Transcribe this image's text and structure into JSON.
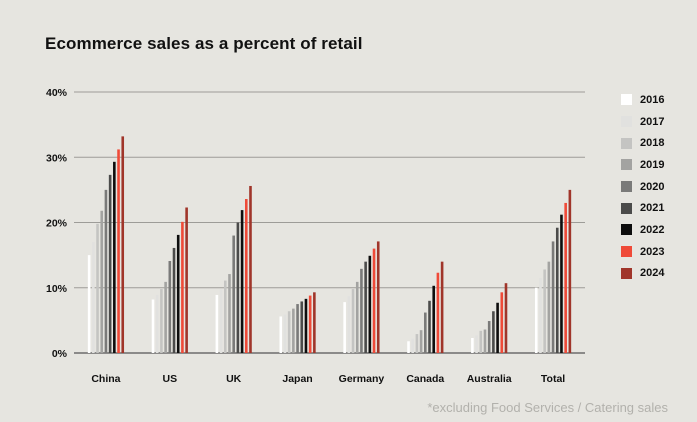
{
  "title": "Ecommerce sales as a percent of retail",
  "footnote": "*excluding Food Services / Catering sales",
  "chart_data": {
    "type": "bar",
    "title": "Ecommerce sales as a percent of retail",
    "xlabel": "",
    "ylabel": "",
    "ylim": [
      0,
      40
    ],
    "yticks": [
      0,
      10,
      20,
      30,
      40
    ],
    "ytick_labels": [
      "0%",
      "10%",
      "20%",
      "30%",
      "40%"
    ],
    "grid": true,
    "legend_position": "right",
    "categories": [
      "China",
      "US",
      "UK",
      "Japan",
      "Germany",
      "Canada",
      "Australia",
      "Total"
    ],
    "series": [
      {
        "name": "2016",
        "color": "#ffffff",
        "values": [
          15.0,
          8.2,
          8.9,
          5.6,
          7.8,
          1.8,
          2.3,
          10.0
        ]
      },
      {
        "name": "2017",
        "color": "#e1e1df",
        "values": [
          17.0,
          8.9,
          9.8,
          5.9,
          8.7,
          2.2,
          2.7,
          11.5
        ]
      },
      {
        "name": "2018",
        "color": "#c4c4c2",
        "values": [
          19.8,
          9.8,
          11.1,
          6.4,
          9.8,
          2.9,
          3.4,
          12.8
        ]
      },
      {
        "name": "2019",
        "color": "#a3a3a1",
        "values": [
          21.8,
          10.9,
          12.1,
          6.8,
          10.9,
          3.5,
          3.6,
          14.0
        ]
      },
      {
        "name": "2020",
        "color": "#7a7a79",
        "values": [
          25.0,
          14.1,
          18.0,
          7.5,
          12.9,
          6.2,
          4.9,
          17.1
        ]
      },
      {
        "name": "2021",
        "color": "#4b4b4a",
        "values": [
          27.3,
          16.1,
          20.0,
          7.9,
          14.0,
          8.0,
          6.4,
          19.2
        ]
      },
      {
        "name": "2022",
        "color": "#0d0d0d",
        "values": [
          29.3,
          18.1,
          21.9,
          8.3,
          14.9,
          10.3,
          7.7,
          21.2
        ]
      },
      {
        "name": "2023",
        "color": "#ef4a38",
        "values": [
          31.2,
          20.1,
          23.6,
          8.8,
          16.0,
          12.3,
          9.3,
          23.0
        ]
      },
      {
        "name": "2024",
        "color": "#a0352a",
        "values": [
          33.2,
          22.3,
          25.6,
          9.3,
          17.1,
          14.0,
          10.7,
          25.0
        ]
      }
    ]
  }
}
